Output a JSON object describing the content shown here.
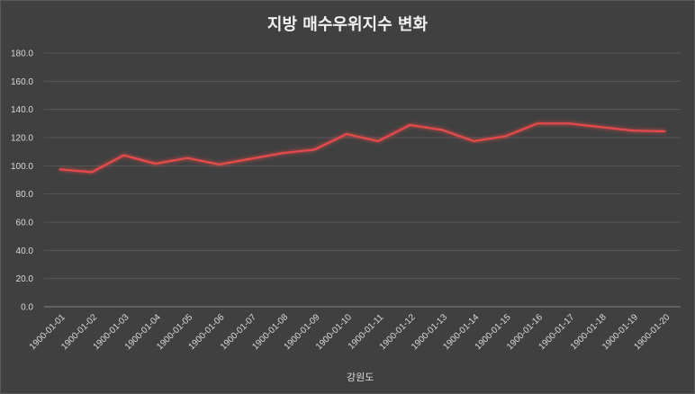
{
  "chart_data": {
    "type": "line",
    "title": "지방 매수우위지수 변화",
    "xlabel": "",
    "ylabel": "",
    "ylim": [
      0,
      180
    ],
    "yticks": [
      "0.0",
      "20.0",
      "40.0",
      "60.0",
      "80.0",
      "100.0",
      "120.0",
      "140.0",
      "160.0",
      "180.0"
    ],
    "categories": [
      "1900-01-01",
      "1900-01-02",
      "1900-01-03",
      "1900-01-04",
      "1900-01-05",
      "1900-01-06",
      "1900-01-07",
      "1900-01-08",
      "1900-01-09",
      "1900-01-10",
      "1900-01-11",
      "1900-01-12",
      "1900-01-13",
      "1900-01-14",
      "1900-01-15",
      "1900-01-16",
      "1900-01-17",
      "1900-01-18",
      "1900-01-19",
      "1900-01-20"
    ],
    "series": [
      {
        "name": "강원도",
        "color": "#e84a4a",
        "values": [
          97.5,
          95.5,
          107.5,
          101.5,
          105.5,
          101.0,
          105.0,
          109.0,
          111.5,
          122.5,
          117.5,
          129.0,
          125.5,
          117.5,
          121.0,
          130.0,
          130.0,
          127.5,
          125.0,
          124.5
        ]
      }
    ],
    "grid": true,
    "legend_position": "bottom"
  }
}
